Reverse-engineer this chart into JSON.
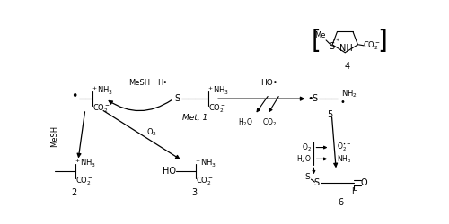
{
  "bg_color": "#ffffff",
  "fig_width": 5.0,
  "fig_height": 2.5,
  "compounds": {
    "met1_label": "Met, 1",
    "c2_label": "2",
    "c3_label": "3",
    "c4_label": "4",
    "c5_label": "5",
    "c6_label": "6"
  },
  "arrow_labels": {
    "mesh_h": "MeSH   H•",
    "ho_rad": "HO•",
    "mesh": "MeSH",
    "o2": "O₂",
    "h2o": "H₂O",
    "co2": "CO₂",
    "o2rad": "O₂•⁻",
    "nh3": "NH₃"
  }
}
